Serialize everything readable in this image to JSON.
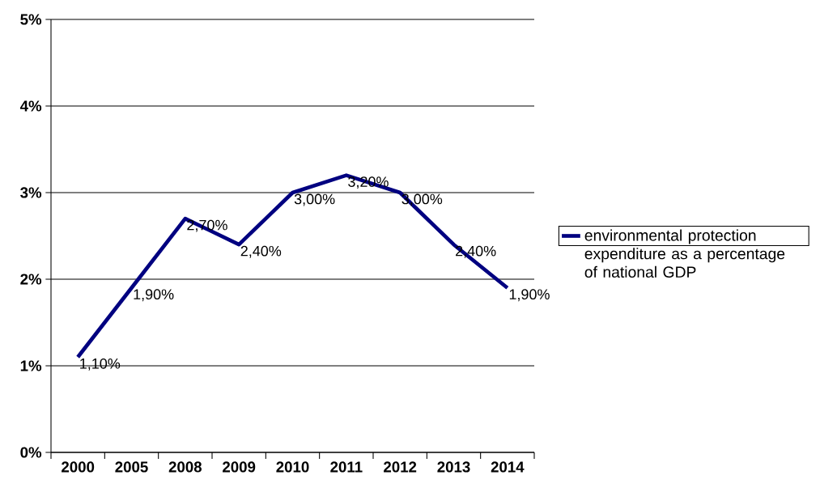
{
  "chart_data": {
    "type": "line",
    "categories": [
      "2000",
      "2005",
      "2008",
      "2009",
      "2010",
      "2011",
      "2012",
      "2013",
      "2014"
    ],
    "series": [
      {
        "name": "environmental protection expenditure as a percentage of national GDP",
        "color": "#000080",
        "values": [
          1.1,
          1.9,
          2.7,
          2.4,
          3.0,
          3.2,
          3.0,
          2.4,
          1.9
        ],
        "value_labels": [
          "1,10%",
          "1,90%",
          "2,70%",
          "2,40%",
          "3,00%",
          "3,20%",
          "3,00%",
          "2,40%",
          "1,90%"
        ]
      }
    ],
    "ylim": [
      0,
      5
    ],
    "yticks": [
      {
        "value": 0,
        "label": "0%"
      },
      {
        "value": 1,
        "label": "1%"
      },
      {
        "value": 2,
        "label": "2%"
      },
      {
        "value": 3,
        "label": "3%"
      },
      {
        "value": 4,
        "label": "4%"
      },
      {
        "value": 5,
        "label": "5%"
      }
    ],
    "grid": "y",
    "legend": "right",
    "marker": "none",
    "line_style": "solid"
  }
}
